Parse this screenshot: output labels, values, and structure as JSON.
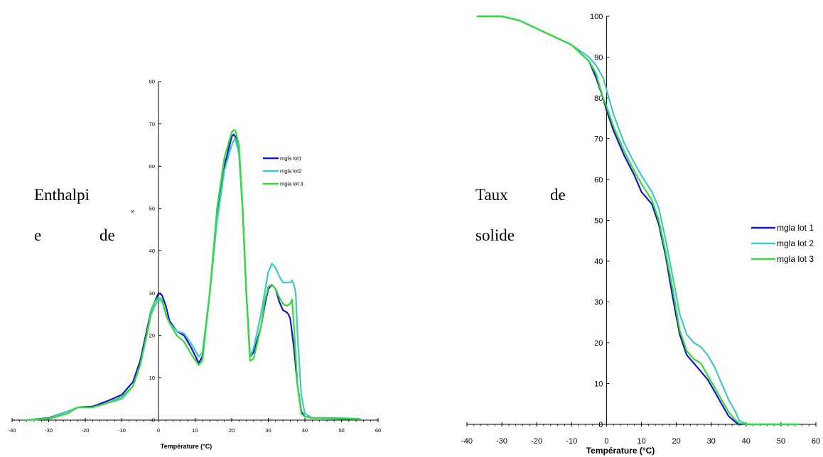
{
  "labels": {
    "left_line1": "Enthalpi",
    "left_line2_a": "e",
    "left_line2_b": "de",
    "right_line1_a": "Taux",
    "right_line1_b": "de",
    "right_line2": "solide"
  },
  "chart_data": [
    {
      "type": "line",
      "title": "",
      "xlabel": "Température (°C)",
      "ylabel": "",
      "xlim": [
        -40,
        60
      ],
      "ylim": [
        0,
        80
      ],
      "xticks": [
        -40,
        -30,
        -20,
        -10,
        0,
        10,
        20,
        30,
        40,
        50,
        60
      ],
      "yticks": [
        0,
        10,
        20,
        30,
        40,
        50,
        60,
        70,
        80
      ],
      "grid": false,
      "legend_position": "upper-right",
      "series": [
        {
          "name": "mgla lot1",
          "color": "#1515cc",
          "x": [
            -36,
            -30,
            -25,
            -22,
            -18,
            -14,
            -10,
            -7,
            -5,
            -3,
            -2,
            -1,
            0,
            1,
            2,
            3,
            5,
            7,
            9,
            11,
            12,
            14,
            16,
            18,
            20,
            20.5,
            21,
            22,
            23,
            24,
            25,
            26,
            28,
            29,
            30,
            31,
            32,
            33,
            34,
            35,
            35.5,
            36,
            37,
            38,
            39,
            40,
            42,
            45,
            48,
            50,
            55
          ],
          "y": [
            0,
            0.5,
            2,
            3,
            3.2,
            4.5,
            6,
            9,
            14,
            22,
            26,
            28,
            30,
            29.5,
            27,
            23.5,
            21,
            20,
            17,
            13.5,
            15,
            30,
            48,
            60,
            67,
            67.5,
            67,
            63,
            50,
            30,
            15,
            16,
            22,
            27,
            31,
            32,
            31,
            28,
            26,
            25.5,
            25,
            24,
            17,
            8,
            2,
            0.8,
            0.5,
            0.5,
            0.4,
            0.3,
            0.2
          ]
        },
        {
          "name": "mgla lot2",
          "color": "#40c8c8",
          "x": [
            -36,
            -30,
            -25,
            -22,
            -18,
            -14,
            -10,
            -7,
            -5,
            -3,
            -2,
            -1,
            0,
            1,
            2,
            3,
            5,
            7,
            9,
            11,
            12,
            14,
            16,
            18,
            20,
            20.5,
            21,
            22,
            23,
            24,
            25,
            26,
            28,
            29,
            30,
            31,
            32,
            33,
            34,
            35,
            36,
            36.5,
            37,
            37.5,
            38,
            39,
            40,
            42,
            45,
            48,
            50,
            55
          ],
          "y": [
            0,
            0.4,
            2,
            3,
            3,
            4,
            5,
            8,
            13,
            21,
            25,
            27,
            28.5,
            28,
            25,
            23,
            21,
            20.5,
            18,
            15,
            16,
            30,
            47,
            59,
            65,
            66,
            66.5,
            63,
            50,
            30,
            15,
            17,
            25,
            30,
            35,
            37,
            36,
            34,
            32.5,
            32.5,
            32.5,
            33,
            32,
            30,
            20,
            6,
            1.5,
            0.5,
            0.5,
            0.5,
            0.5,
            0.3
          ]
        },
        {
          "name": "mgla lot 3",
          "color": "#33dd33",
          "x": [
            -36,
            -30,
            -25,
            -22,
            -18,
            -14,
            -10,
            -7,
            -5,
            -3,
            -2,
            -1,
            0,
            1,
            2,
            3,
            5,
            7,
            9,
            11,
            12,
            14,
            16,
            18,
            20,
            20.5,
            21,
            22,
            23,
            24,
            25,
            26,
            28,
            29,
            30,
            31,
            32,
            33,
            34,
            35,
            36,
            36.5,
            37,
            38,
            39,
            40,
            42,
            45,
            48,
            50,
            55
          ],
          "y": [
            0,
            0.3,
            1.5,
            3,
            3,
            4,
            5.5,
            8,
            13,
            21,
            26,
            28,
            29,
            28.5,
            25,
            23,
            20,
            18.5,
            15.5,
            13,
            14,
            30,
            50,
            62,
            68,
            68.5,
            68.5,
            65,
            50,
            30,
            14,
            14.5,
            22,
            28,
            31.5,
            32,
            31,
            29,
            27.5,
            27,
            27.5,
            28.5,
            22,
            8,
            1.5,
            0.8,
            0.5,
            0.4,
            0.3,
            0.3,
            0.2
          ]
        }
      ],
      "stray_axis_label": "s"
    },
    {
      "type": "line",
      "title": "",
      "xlabel": "Température (°C)",
      "ylabel": "",
      "xlim": [
        -40,
        60
      ],
      "ylim": [
        0,
        100
      ],
      "xticks": [
        -40,
        -30,
        -20,
        -10,
        0,
        10,
        20,
        30,
        40,
        50,
        60
      ],
      "yticks": [
        0,
        10,
        20,
        30,
        40,
        50,
        60,
        70,
        80,
        90,
        100
      ],
      "grid": false,
      "legend_position": "right",
      "series": [
        {
          "name": "mgla lot 1",
          "color": "#1515cc",
          "x": [
            -37,
            -30,
            -25,
            -20,
            -15,
            -10,
            -5,
            -3,
            -1,
            0,
            2,
            5,
            8,
            10,
            13,
            15,
            17,
            19,
            21,
            23,
            25,
            27,
            29,
            31,
            33,
            35,
            37,
            38,
            40,
            45,
            50,
            55
          ],
          "y": [
            100,
            100,
            99,
            97,
            95,
            93,
            89,
            85,
            80,
            77,
            72,
            66,
            61,
            57,
            54,
            49,
            41,
            31,
            22,
            17,
            15,
            13,
            11,
            8,
            5,
            2,
            0.5,
            0,
            0,
            0,
            0,
            0
          ]
        },
        {
          "name": "mgla lot 2",
          "color": "#40c8c8",
          "x": [
            -37,
            -30,
            -25,
            -20,
            -15,
            -10,
            -5,
            -3,
            -1,
            0,
            2,
            5,
            8,
            10,
            13,
            15,
            17,
            19,
            21,
            23,
            25,
            27,
            29,
            31,
            33,
            35,
            37,
            38,
            39,
            40,
            45,
            50,
            55
          ],
          "y": [
            100,
            100,
            99,
            97,
            95,
            93,
            90,
            88,
            85,
            82,
            76,
            69,
            64,
            61,
            57,
            53,
            45,
            36,
            27,
            22,
            20,
            19,
            17,
            14,
            10,
            6,
            3,
            1,
            0.5,
            0,
            0,
            0,
            0
          ]
        },
        {
          "name": "mgla lot 3",
          "color": "#33dd33",
          "x": [
            -37,
            -30,
            -25,
            -20,
            -15,
            -10,
            -5,
            -3,
            -1,
            0,
            2,
            5,
            8,
            10,
            13,
            15,
            17,
            19,
            21,
            23,
            25,
            27,
            29,
            31,
            33,
            35,
            37,
            38,
            40,
            45,
            50,
            55
          ],
          "y": [
            100,
            100,
            99,
            97,
            95,
            93,
            89,
            86,
            80,
            78,
            73,
            67,
            62,
            59,
            55,
            50,
            42,
            33,
            23,
            18,
            16,
            15,
            12,
            9,
            6,
            3,
            1,
            0.3,
            0,
            0,
            0,
            0
          ]
        }
      ]
    }
  ]
}
